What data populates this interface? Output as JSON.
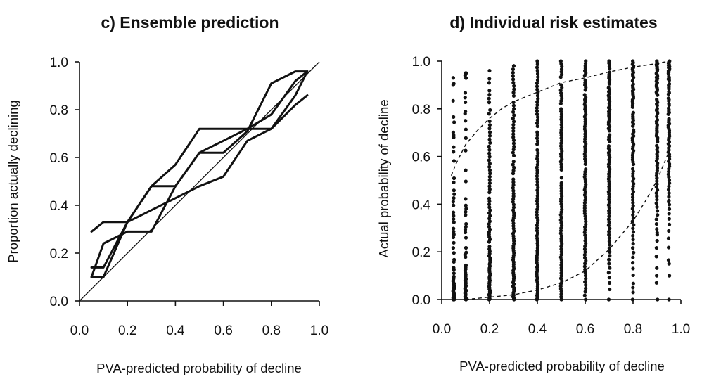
{
  "chart_data": [
    {
      "type": "line",
      "title": "c) Ensemble prediction",
      "xlabel": "PVA-predicted probability of decline",
      "ylabel": "Proportion actually declining",
      "xlim": [
        0,
        1
      ],
      "ylim": [
        0,
        1
      ],
      "xticks": [
        "0.0",
        "0.2",
        "0.4",
        "0.6",
        "0.8",
        "1.0"
      ],
      "yticks": [
        "0.0",
        "0.2",
        "0.4",
        "0.6",
        "0.8",
        "1.0"
      ],
      "grid": false,
      "reference_line": {
        "x": [
          0,
          1
        ],
        "y": [
          0,
          1
        ]
      },
      "series": [
        {
          "x": [
            0.05,
            0.1,
            0.2,
            0.3,
            0.4,
            0.5,
            0.7,
            0.8,
            0.9,
            0.95
          ],
          "y": [
            0.29,
            0.33,
            0.33,
            0.48,
            0.48,
            0.62,
            0.72,
            0.78,
            0.92,
            0.96
          ]
        },
        {
          "x": [
            0.05,
            0.1,
            0.2,
            0.3,
            0.4,
            0.5,
            0.6,
            0.7,
            0.8,
            0.9,
            0.95
          ],
          "y": [
            0.1,
            0.24,
            0.29,
            0.29,
            0.48,
            0.62,
            0.62,
            0.71,
            0.91,
            0.96,
            0.96
          ]
        },
        {
          "x": [
            0.05,
            0.1,
            0.2,
            0.3,
            0.4,
            0.5,
            0.6,
            0.7,
            0.8,
            0.9,
            0.95
          ],
          "y": [
            0.14,
            0.14,
            0.33,
            0.48,
            0.57,
            0.72,
            0.72,
            0.72,
            0.72,
            0.86,
            0.96
          ]
        },
        {
          "x": [
            0.05,
            0.1,
            0.2,
            0.3,
            0.4,
            0.5,
            0.6,
            0.7,
            0.8,
            0.9,
            0.95
          ],
          "y": [
            0.1,
            0.1,
            0.33,
            0.38,
            0.43,
            0.48,
            0.52,
            0.67,
            0.72,
            0.82,
            0.86
          ]
        }
      ]
    },
    {
      "type": "scatter",
      "title": "d) Individual risk estimates",
      "xlabel": "PVA-predicted probability of decline",
      "ylabel": "Actual probability of decline",
      "xlim": [
        0,
        1
      ],
      "ylim": [
        0,
        1
      ],
      "xticks": [
        "0.0",
        "0.2",
        "0.4",
        "0.6",
        "0.8",
        "1.0"
      ],
      "yticks": [
        "0.0",
        "0.2",
        "0.4",
        "0.6",
        "0.8",
        "1.0"
      ],
      "grid": false,
      "columns": [
        {
          "x": 0.05,
          "density": 0.55,
          "max": 0.93,
          "low_bias": 2.4,
          "extras": [
            0.69,
            0.9,
            0.93
          ]
        },
        {
          "x": 0.1,
          "density": 0.55,
          "max": 0.95,
          "low_bias": 2.0,
          "extras": [
            0.75,
            0.78,
            0.94,
            0.95
          ]
        },
        {
          "x": 0.2,
          "density": 0.85,
          "max": 0.96,
          "low_bias": 1.6,
          "extras": []
        },
        {
          "x": 0.3,
          "density": 0.9,
          "max": 0.98,
          "low_bias": 1.3,
          "extras": []
        },
        {
          "x": 0.4,
          "density": 0.9,
          "max": 1.0,
          "low_bias": 1.2,
          "extras": []
        },
        {
          "x": 0.5,
          "density": 0.95,
          "max": 1.0,
          "low_bias": 1.0,
          "extras": []
        },
        {
          "x": 0.6,
          "density": 0.95,
          "max": 1.0,
          "low_bias": 0.9,
          "extras": []
        },
        {
          "x": 0.7,
          "density": 0.9,
          "max": 1.0,
          "low_bias": 0.7,
          "extras": []
        },
        {
          "x": 0.8,
          "density": 0.85,
          "max": 1.0,
          "low_bias": 0.6,
          "extras": [
            0.03,
            0.05
          ]
        },
        {
          "x": 0.9,
          "density": 0.9,
          "max": 1.0,
          "low_bias": 0.45,
          "extras": [
            0.07,
            0.1,
            0.28
          ]
        },
        {
          "x": 0.95,
          "density": 0.85,
          "max": 1.0,
          "low_bias": 0.4,
          "extras": [
            0.1,
            0.15,
            0.41
          ]
        }
      ],
      "dashed_curves": [
        {
          "x": [
            0.04,
            0.06,
            0.1,
            0.15,
            0.2,
            0.25,
            0.3,
            0.35,
            0.4,
            0.5,
            0.6,
            0.7,
            0.8,
            0.9,
            0.95
          ],
          "y": [
            0.52,
            0.57,
            0.65,
            0.71,
            0.76,
            0.8,
            0.83,
            0.85,
            0.87,
            0.91,
            0.93,
            0.955,
            0.975,
            0.99,
            1.0
          ]
        },
        {
          "x": [
            0.1,
            0.15,
            0.2,
            0.3,
            0.4,
            0.5,
            0.6,
            0.7,
            0.8,
            0.85,
            0.9,
            0.95
          ],
          "y": [
            0.0,
            0.005,
            0.01,
            0.02,
            0.04,
            0.07,
            0.12,
            0.21,
            0.33,
            0.41,
            0.5,
            0.62
          ]
        }
      ]
    }
  ]
}
